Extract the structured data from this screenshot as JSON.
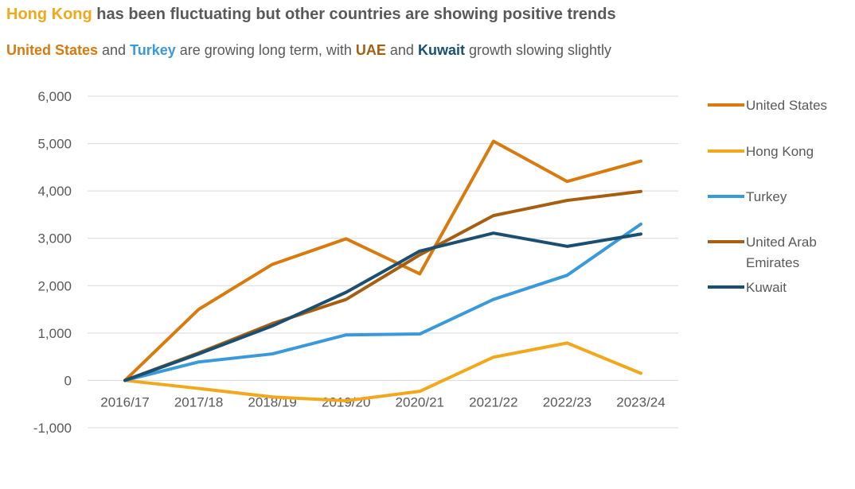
{
  "header": {
    "title_highlight": "Hong Kong",
    "title_rest": " has been fluctuating but other countries are showing positive trends",
    "subtitle_parts": [
      {
        "text": "United States",
        "color": "#D97A0F",
        "bold": true
      },
      {
        "text": " and ",
        "color": "#595959",
        "bold": false
      },
      {
        "text": "Turkey",
        "color": "#3A9AD9",
        "bold": true
      },
      {
        "text": " are growing long term, with ",
        "color": "#595959",
        "bold": false
      },
      {
        "text": "UAE",
        "color": "#A65E10",
        "bold": true
      },
      {
        "text": " and ",
        "color": "#595959",
        "bold": false
      },
      {
        "text": "Kuwait",
        "color": "#1B4F72",
        "bold": true
      },
      {
        "text": " growth slowing slightly",
        "color": "#595959",
        "bold": false
      }
    ]
  },
  "chart_data": {
    "type": "line",
    "title": "",
    "xlabel": "",
    "ylabel": "",
    "ylim": [
      -1000,
      6000
    ],
    "yticks": [
      -1000,
      0,
      1000,
      2000,
      3000,
      4000,
      5000,
      6000
    ],
    "ytick_labels": [
      "-1,000",
      "0",
      "1,000",
      "2,000",
      "3,000",
      "4,000",
      "5,000",
      "6,000"
    ],
    "grid": true,
    "legend_position": "right",
    "categories": [
      "2016/17",
      "2017/18",
      "2018/19",
      "2019/20",
      "2020/21",
      "2021/22",
      "2022/23",
      "2023/24"
    ],
    "series": [
      {
        "name": "United States",
        "color": "#D97A0F",
        "values": [
          0,
          1500,
          2450,
          2990,
          2250,
          5050,
          4200,
          4630
        ]
      },
      {
        "name": "Hong Kong",
        "color": "#F2A81D",
        "values": [
          0,
          -170,
          -350,
          -430,
          -230,
          490,
          790,
          150
        ]
      },
      {
        "name": "Turkey",
        "color": "#3A9AD9",
        "values": [
          0,
          390,
          560,
          960,
          980,
          1710,
          2220,
          3300
        ]
      },
      {
        "name": "United Arab Emirates",
        "color": "#A65E10",
        "values": [
          0,
          580,
          1200,
          1710,
          2650,
          3480,
          3800,
          3990
        ]
      },
      {
        "name": "Kuwait",
        "color": "#1B4F72",
        "values": [
          0,
          560,
          1150,
          1860,
          2730,
          3110,
          2830,
          3090
        ]
      }
    ]
  }
}
